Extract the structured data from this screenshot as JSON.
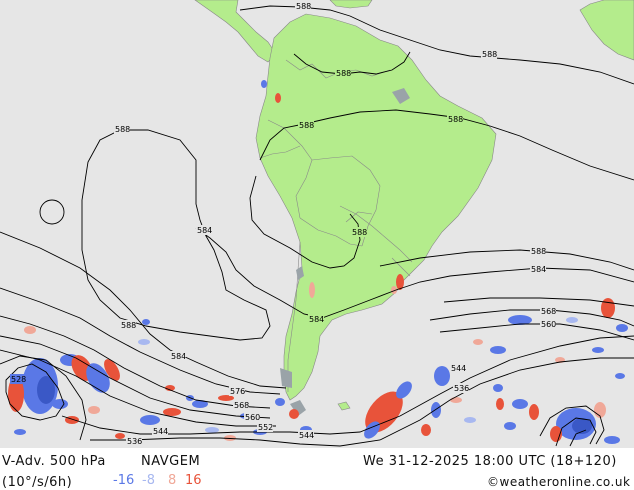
{
  "title": "V-Adv. 500 hPa",
  "model": "NAVGEM",
  "units": "(10°/s/6h)",
  "datetime": "We 31-12-2025 18:00 UTC (18+120)",
  "credit": "©weatheronline.co.uk",
  "legend": [
    {
      "value": "-16",
      "color": "#5a78e6"
    },
    {
      "value": "-8",
      "color": "#a8b8f0"
    },
    {
      "value": "8",
      "color": "#f0a898"
    },
    {
      "value": "16",
      "color": "#e8533a"
    }
  ],
  "colors": {
    "ocean": "#e6e6e6",
    "land": "#b4ec8c",
    "border": "#888888",
    "contour": "#000000"
  },
  "contour_labels": [
    {
      "id": "lbl-588-top",
      "text": "588"
    },
    {
      "id": "lbl-588-venezuela",
      "text": "588"
    },
    {
      "id": "lbl-588-atlantic-n",
      "text": "588"
    },
    {
      "id": "lbl-588-brazil-w",
      "text": "588"
    },
    {
      "id": "lbl-588-brazil-e",
      "text": "588"
    },
    {
      "id": "lbl-588-pacific",
      "text": "588"
    },
    {
      "id": "lbl-584-pacific",
      "text": "584"
    },
    {
      "id": "lbl-588-argentina",
      "text": "588"
    },
    {
      "id": "lbl-588-atlantic-s",
      "text": "588"
    },
    {
      "id": "lbl-584-atlantic",
      "text": "584"
    },
    {
      "id": "lbl-584-patagonia",
      "text": "584"
    },
    {
      "id": "lbl-588-sw",
      "text": "588"
    },
    {
      "id": "lbl-584-sw",
      "text": "584"
    },
    {
      "id": "lbl-528",
      "text": "528"
    },
    {
      "id": "lbl-576",
      "text": "576"
    },
    {
      "id": "lbl-568",
      "text": "568"
    },
    {
      "id": "lbl-560-s",
      "text": "560"
    },
    {
      "id": "lbl-552",
      "text": "552"
    },
    {
      "id": "lbl-544-s",
      "text": "544"
    },
    {
      "id": "lbl-536-s",
      "text": "536"
    },
    {
      "id": "lbl-544-sw",
      "text": "544"
    },
    {
      "id": "lbl-544-e",
      "text": "544"
    },
    {
      "id": "lbl-536-e",
      "text": "536"
    },
    {
      "id": "lbl-568-e",
      "text": "568"
    },
    {
      "id": "lbl-560-e",
      "text": "560"
    }
  ]
}
